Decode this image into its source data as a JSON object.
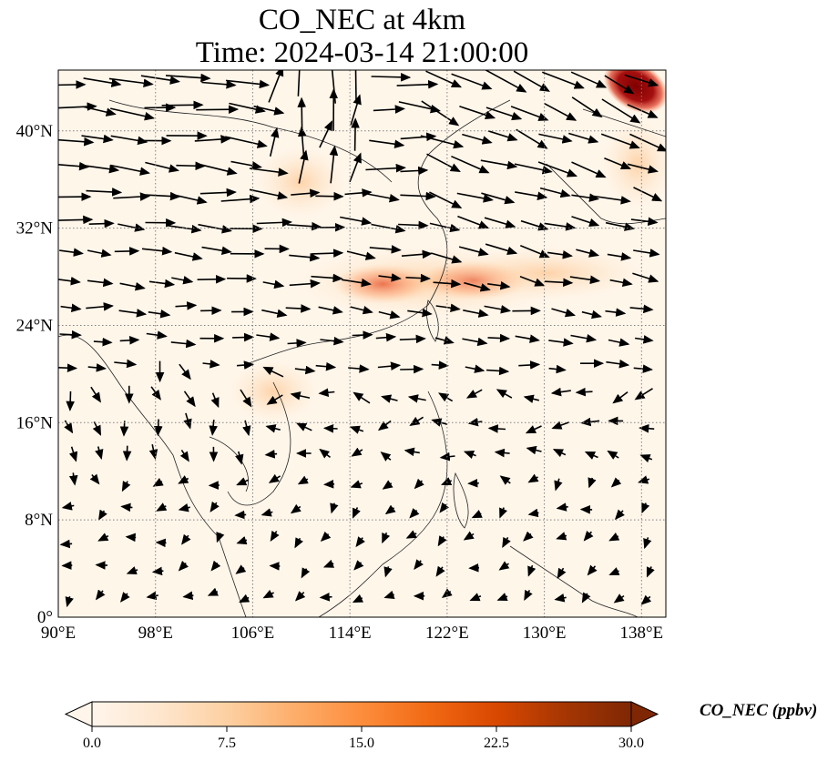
{
  "title": {
    "line1": "CO_NEC at 4km",
    "line2": "Time: 2024-03-14 21:00:00"
  },
  "map": {
    "lon_ticks": [
      "90°E",
      "98°E",
      "106°E",
      "114°E",
      "122°E",
      "130°E",
      "138°E"
    ],
    "lat_ticks": [
      "0°",
      "8°N",
      "16°N",
      "24°N",
      "32°N",
      "40°N"
    ],
    "lon_values": [
      90,
      98,
      106,
      114,
      122,
      130,
      138
    ],
    "lat_values": [
      0,
      8,
      16,
      24,
      32,
      40
    ],
    "lon_range": [
      90,
      140
    ],
    "lat_range": [
      0,
      45
    ],
    "gridlines": "dotted",
    "colors": {
      "ocean_land_base": "#fff6ea",
      "coast": "#222222",
      "arrow": "#000000"
    }
  },
  "colorbar": {
    "label": "CO_NEC (ppbv)",
    "ticks": [
      "0.0",
      "7.5",
      "15.0",
      "22.5",
      "30.0"
    ],
    "tick_values": [
      0,
      7.5,
      15,
      22.5,
      30
    ],
    "range": [
      0,
      30
    ],
    "colormap": [
      "#fff5eb",
      "#fee6ce",
      "#fdd0a2",
      "#fdae6b",
      "#fd8d3c",
      "#f16913",
      "#d94801",
      "#a63603",
      "#7f2704"
    ],
    "extend": "both"
  }
}
